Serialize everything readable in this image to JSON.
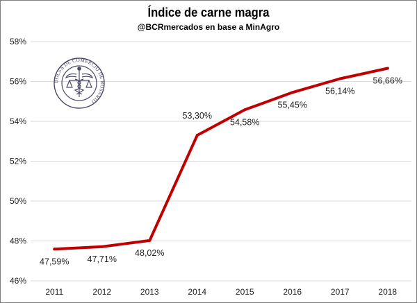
{
  "chart_data": {
    "type": "line",
    "title": "Índice de carne magra",
    "subtitle": "@BCRmercados  en base a MinAgro",
    "xlabel": "",
    "ylabel": "",
    "categories": [
      "2011",
      "2012",
      "2013",
      "2014",
      "2015",
      "2016",
      "2017",
      "2018"
    ],
    "series": [
      {
        "name": "Índice de carne magra",
        "values": [
          47.59,
          47.71,
          48.02,
          53.3,
          54.58,
          55.45,
          56.14,
          56.66
        ],
        "labels": [
          "47,59%",
          "47,71%",
          "48,02%",
          "53,30%",
          "54,58%",
          "55,45%",
          "56,14%",
          "56,66%"
        ],
        "color": "#c00000"
      }
    ],
    "ylim": [
      46,
      58
    ],
    "yticks": [
      46,
      48,
      50,
      52,
      54,
      56,
      58
    ],
    "ytick_labels": [
      "46%",
      "48%",
      "50%",
      "52%",
      "54%",
      "56%",
      "58%"
    ],
    "grid": true,
    "legend": "none"
  },
  "watermark": {
    "text": "BOLSA DE COMERCIO DE ROSARIO",
    "icon": "caduceus-seal-icon"
  },
  "colors": {
    "line": "#c00000",
    "grid": "#d9d9d9",
    "frame": "#7f7f7f",
    "seal": "#4a4a66"
  }
}
